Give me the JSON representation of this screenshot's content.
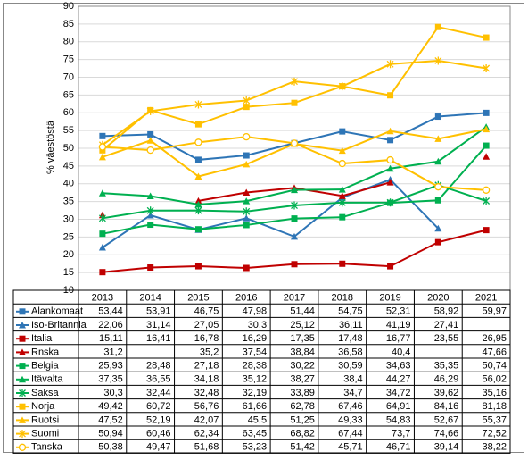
{
  "chart_data": {
    "type": "line",
    "y_label": "% väestöstä",
    "categories": [
      "2013",
      "2014",
      "2015",
      "2016",
      "2017",
      "2018",
      "2019",
      "2020",
      "2021"
    ],
    "ylim": [
      10,
      90
    ],
    "yticks": [
      10,
      15,
      20,
      25,
      30,
      35,
      40,
      45,
      50,
      55,
      60,
      65,
      70,
      75,
      80,
      85,
      90
    ],
    "series": [
      {
        "name": "Alankomaat",
        "color": "#2E75B6",
        "marker": "square",
        "values": [
          53.44,
          53.91,
          46.75,
          47.98,
          51.44,
          54.75,
          52.31,
          58.92,
          59.97
        ],
        "value_labels": [
          "53,44",
          "53,91",
          "46,75",
          "47,98",
          "51,44",
          "54,75",
          "52,31",
          "58,92",
          "59,97"
        ]
      },
      {
        "name": "Iso-Britannia",
        "color": "#2E75B6",
        "marker": "triangle",
        "values": [
          22.06,
          31.14,
          27.05,
          30.3,
          25.12,
          36.11,
          41.19,
          27.41,
          null
        ],
        "value_labels": [
          "22,06",
          "31,14",
          "27,05",
          "30,3",
          "25,12",
          "36,11",
          "41,19",
          "27,41",
          null
        ]
      },
      {
        "name": "Italia",
        "color": "#C00000",
        "marker": "square",
        "values": [
          15.11,
          16.41,
          16.78,
          16.29,
          17.35,
          17.48,
          16.77,
          23.55,
          26.95
        ],
        "value_labels": [
          "15,11",
          "16,41",
          "16,78",
          "16,29",
          "17,35",
          "17,48",
          "16,77",
          "23,55",
          "26,95"
        ]
      },
      {
        "name": "Rnska",
        "color": "#C00000",
        "marker": "triangle",
        "values": [
          31.2,
          null,
          35.2,
          37.54,
          38.84,
          36.58,
          40.4,
          null,
          47.66
        ],
        "value_labels": [
          "31,2",
          null,
          "35,2",
          "37,54",
          "38,84",
          "36,58",
          "40,4",
          null,
          "47,66"
        ]
      },
      {
        "name": "Belgia",
        "color": "#00B050",
        "marker": "square",
        "values": [
          25.93,
          28.48,
          27.18,
          28.38,
          30.22,
          30.59,
          34.63,
          35.35,
          50.74
        ],
        "value_labels": [
          "25,93",
          "28,48",
          "27,18",
          "28,38",
          "30,22",
          "30,59",
          "34,63",
          "35,35",
          "50,74"
        ]
      },
      {
        "name": "Itävalta",
        "color": "#00B050",
        "marker": "triangle",
        "values": [
          37.35,
          36.55,
          34.18,
          35.12,
          38.27,
          38.4,
          44.27,
          46.29,
          56.02
        ],
        "value_labels": [
          "37,35",
          "36,55",
          "34,18",
          "35,12",
          "38,27",
          "38,4",
          "44,27",
          "46,29",
          "56,02"
        ]
      },
      {
        "name": "Saksa",
        "color": "#00B050",
        "marker": "cross",
        "values": [
          30.3,
          32.44,
          32.48,
          32.19,
          33.89,
          34.7,
          34.72,
          39.62,
          35.16
        ],
        "value_labels": [
          "30,3",
          "32,44",
          "32,48",
          "32,19",
          "33,89",
          "34,7",
          "34,72",
          "39,62",
          "35,16"
        ]
      },
      {
        "name": "Norja",
        "color": "#FFC000",
        "marker": "square",
        "values": [
          49.42,
          60.72,
          56.76,
          61.66,
          62.78,
          67.46,
          64.91,
          84.16,
          81.18
        ],
        "value_labels": [
          "49,42",
          "60,72",
          "56,76",
          "61,66",
          "62,78",
          "67,46",
          "64,91",
          "84,16",
          "81,18"
        ]
      },
      {
        "name": "Ruotsi",
        "color": "#FFC000",
        "marker": "triangle",
        "values": [
          47.52,
          52.19,
          42.07,
          45.5,
          51.25,
          49.33,
          54.83,
          52.67,
          55.37
        ],
        "value_labels": [
          "47,52",
          "52,19",
          "42,07",
          "45,5",
          "51,25",
          "49,33",
          "54,83",
          "52,67",
          "55,37"
        ]
      },
      {
        "name": "Suomi",
        "color": "#FFC000",
        "marker": "cross",
        "values": [
          50.94,
          60.46,
          62.34,
          63.45,
          68.82,
          67.44,
          73.7,
          74.66,
          72.52
        ],
        "value_labels": [
          "50,94",
          "60,46",
          "62,34",
          "63,45",
          "68,82",
          "67,44",
          "73,7",
          "74,66",
          "72,52"
        ]
      },
      {
        "name": "Tanska",
        "color": "#FFC000",
        "marker": "circle",
        "values": [
          50.38,
          49.47,
          51.68,
          53.23,
          51.42,
          45.71,
          46.71,
          39.14,
          38.22
        ],
        "value_labels": [
          "50,38",
          "49,47",
          "51,68",
          "53,23",
          "51,42",
          "45,71",
          "46,71",
          "39,14",
          "38,22"
        ]
      }
    ]
  }
}
